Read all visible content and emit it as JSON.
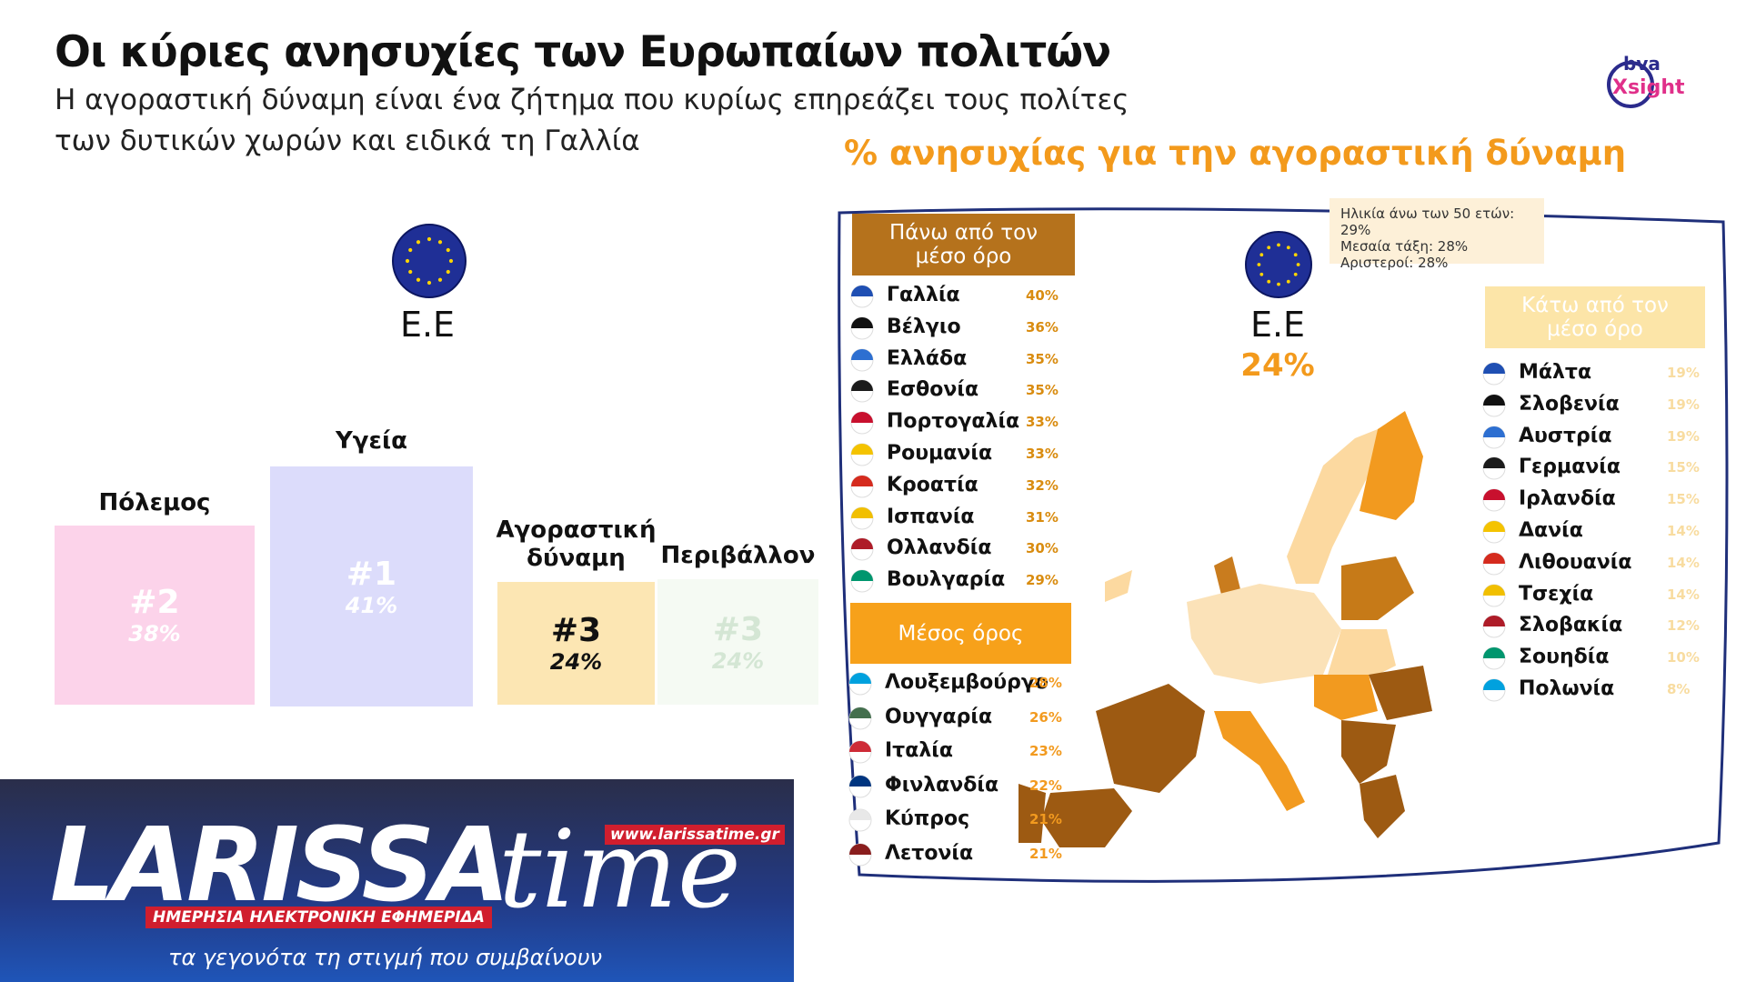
{
  "header": {
    "title": "Οι κύριες ανησυχίες των Ευρωπαίων πολιτών",
    "subtitle": [
      "Η αγοραστική δύναμη είναι ένα ζήτημα που κυρίως επηρεάζει τους πολίτες",
      "των δυτικών χωρών και ειδικά τη Γαλλία"
    ]
  },
  "logo": {
    "top": "bva",
    "bottom": "Xsight"
  },
  "left": {
    "region": "Ε.Ε",
    "items": [
      {
        "label": "Πόλεμος",
        "rank": "#2",
        "value": "38%"
      },
      {
        "label": "Υγεία",
        "rank": "#1",
        "value": "41%"
      },
      {
        "label": "Αγοραστική δύναμη",
        "rank": "#3",
        "value": "24%"
      },
      {
        "label": "Περιβάλλον",
        "rank": "#3",
        "value": "24%"
      }
    ]
  },
  "map": {
    "title": "% ανησυχίας για την αγοραστική δύναμη",
    "region": "Ε.Ε",
    "value": "24%",
    "note": [
      "Ηλικία άνω των 50 ετών: 29%",
      "Μεσαία τάξη: 28%",
      "Αριστεροί: 28%"
    ],
    "above": {
      "heading": "Πάνω από τον μέσο όρο",
      "rows": [
        [
          "Γαλλία",
          "40%"
        ],
        [
          "Βέλγιο",
          "36%"
        ],
        [
          "Ελλάδα",
          "35%"
        ],
        [
          "Εσθονία",
          "35%"
        ],
        [
          "Πορτογαλία",
          "33%"
        ],
        [
          "Ρουμανία",
          "33%"
        ],
        [
          "Κροατία",
          "32%"
        ],
        [
          "Ισπανία",
          "31%"
        ],
        [
          "Ολλανδία",
          "30%"
        ],
        [
          "Βουλγαρία",
          "29%"
        ]
      ]
    },
    "average": {
      "heading": "Μέσος όρος",
      "rows": [
        [
          "Λουξεμβούργο",
          "28%"
        ],
        [
          "Ουγγαρία",
          "26%"
        ],
        [
          "Ιταλία",
          "23%"
        ],
        [
          "Φινλανδία",
          "22%"
        ],
        [
          "Κύπρος",
          "21%"
        ],
        [
          "Λετονία",
          "21%"
        ]
      ]
    },
    "below": {
      "heading": "Κάτω από τον μέσο όρο",
      "rows": [
        [
          "Μάλτα",
          "19%"
        ],
        [
          "Σλοβενία",
          "19%"
        ],
        [
          "Αυστρία",
          "19%"
        ],
        [
          "Γερμανία",
          "15%"
        ],
        [
          "Ιρλανδία",
          "15%"
        ],
        [
          "Δανία",
          "14%"
        ],
        [
          "Λιθουανία",
          "14%"
        ],
        [
          "Τσεχία",
          "14%"
        ],
        [
          "Σλοβακία",
          "12%"
        ],
        [
          "Σουηδία",
          "10%"
        ],
        [
          "Πολωνία",
          "8%"
        ]
      ]
    }
  },
  "banner": {
    "brand": "LARISSA",
    "brand2": "time",
    "url": "www.larissatime.gr",
    "tagline": "ΗΜΕΡΗΣΙΑ ΗΛΕΚΤΡΟΝΙΚΗ ΕΦΗΜΕΡΙΔΑ",
    "slogan": "τα γεγονότα τη στιγμή που συμβαίνουν"
  }
}
